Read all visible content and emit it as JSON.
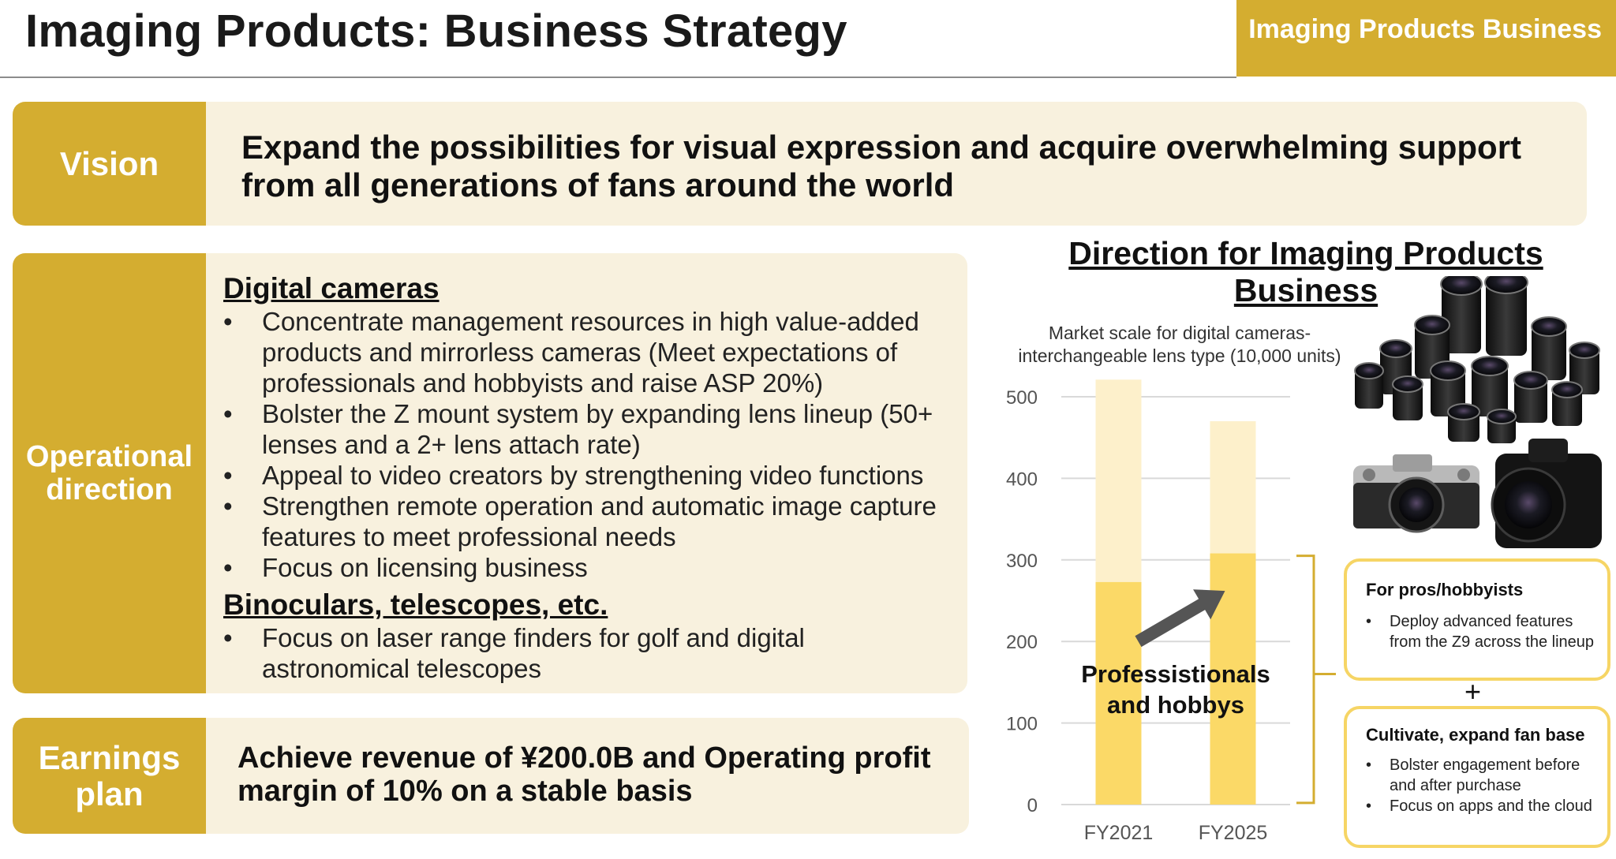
{
  "header": {
    "title": "Imaging Products: Business Strategy",
    "tag": "Imaging Products Business"
  },
  "vision": {
    "label": "Vision",
    "text": "Expand the possibilities for visual expression and acquire overwhelming support from all generations of fans around the world"
  },
  "operational": {
    "label": "Operational direction",
    "sections": [
      {
        "heading": "Digital cameras",
        "bullets": [
          "Concentrate management resources in high value-added products and mirrorless cameras (Meet expectations of professionals and hobbyists and raise ASP 20%)",
          "Bolster the Z mount system by expanding lens lineup (50+ lenses and a 2+ lens attach rate)",
          "Appeal to video creators by strengthening video functions",
          "Strengthen remote operation and automatic image capture features to meet professional needs",
          "Focus on licensing business"
        ]
      },
      {
        "heading": "Binoculars, telescopes, etc.",
        "bullets": [
          "Focus on laser range finders for golf and digital astronomical telescopes"
        ]
      }
    ]
  },
  "earnings": {
    "label": "Earnings plan",
    "text": "Achieve revenue of ¥200.0B and Operating profit margin of 10% on a stable basis"
  },
  "chart_data": {
    "type": "bar",
    "title": "Direction for Imaging Products Business",
    "subtitle": "Market scale for digital cameras-interchangeable lens type (10,000 units)",
    "categories": [
      "FY2021",
      "FY2025"
    ],
    "series": [
      {
        "values": [
          273,
          308
        ],
        "color": "#fbd967"
      },
      {
        "values": [
          248,
          162
        ],
        "color": "#fdf0cb"
      }
    ],
    "ylim": [
      0,
      500
    ],
    "yticks": [
      0,
      100,
      200,
      300,
      400,
      500
    ],
    "grid": true,
    "annotation": "Professistionals and hobbys",
    "colors": {
      "accent": "#d4ad30",
      "arrow": "#555555",
      "callout_border": "#f6d565"
    }
  },
  "callouts": [
    {
      "title": "For pros/hobbyists",
      "bullets": [
        "Deploy advanced features from the Z9 across the lineup"
      ]
    },
    {
      "title": "Cultivate, expand fan base",
      "bullets": [
        "Bolster engagement before and after purchase",
        "Focus on apps and the cloud"
      ]
    }
  ],
  "plus": "+"
}
